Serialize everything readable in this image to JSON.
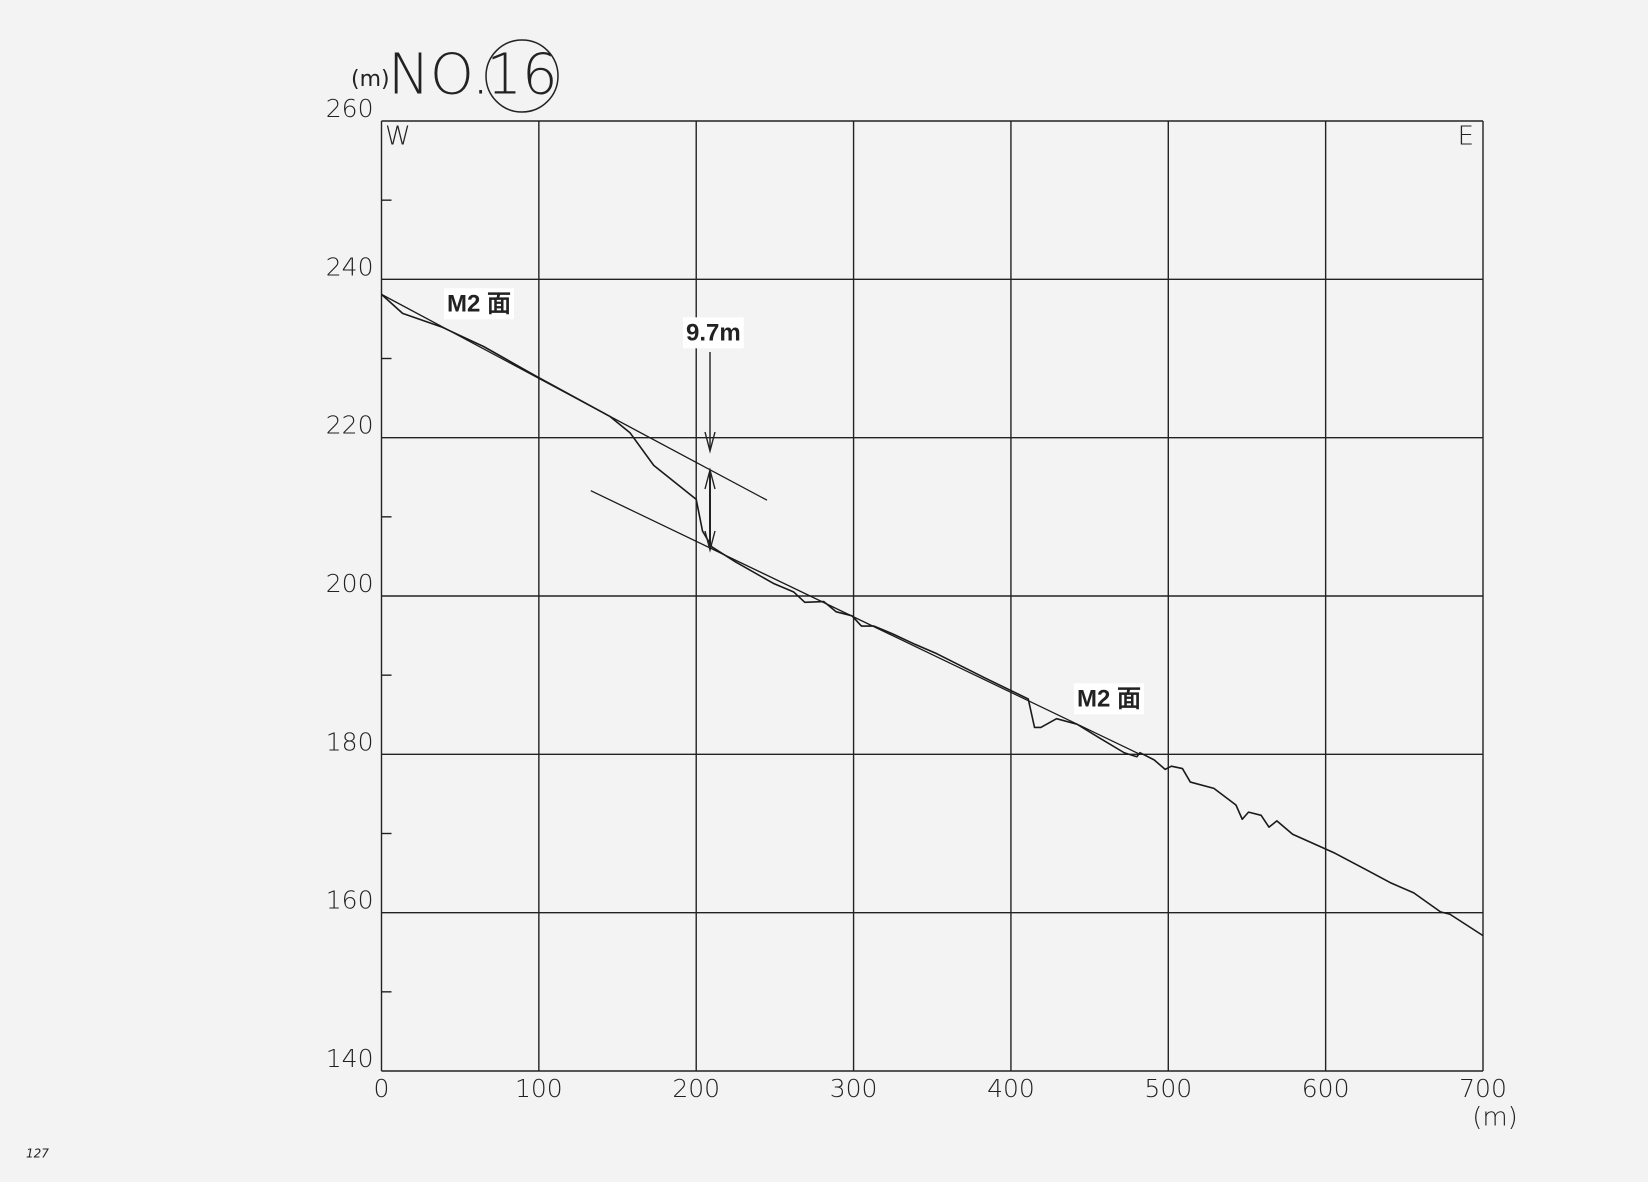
{
  "chart_data": {
    "type": "line",
    "title": "NO.",
    "title_number": "16",
    "ylabel": "(m)",
    "xlabel": "(m)",
    "west_label": "W",
    "east_label": "E",
    "note": "127",
    "annotations": [
      "M2 面",
      "9.7m",
      "M2 面"
    ],
    "x": [
      0,
      13.4,
      38,
      65,
      98,
      145,
      158,
      173,
      200,
      204,
      210,
      225,
      249,
      262,
      269,
      281,
      289,
      299,
      305,
      313,
      325,
      339,
      353,
      383,
      411,
      415,
      419,
      429,
      442,
      456,
      472,
      480,
      482,
      491,
      498,
      502,
      509,
      514,
      529,
      543,
      547,
      551,
      559,
      564,
      569,
      579,
      606,
      626,
      641,
      656,
      673,
      679,
      700
    ],
    "values": [
      238.1,
      235.7,
      234,
      231.5,
      227.8,
      222.7,
      220.6,
      216.5,
      212.2,
      208.2,
      206.2,
      204.3,
      201.6,
      200.5,
      199.2,
      199.3,
      198,
      197.5,
      196.2,
      196.2,
      195.2,
      193.9,
      192.7,
      189.7,
      187,
      183.4,
      183.4,
      184.5,
      183.8,
      182.1,
      180.2,
      179.7,
      180.2,
      179.3,
      178.1,
      178.5,
      178.2,
      176.5,
      175.7,
      173.6,
      171.8,
      172.7,
      172.3,
      170.8,
      171.6,
      169.9,
      167.5,
      165.4,
      163.8,
      162.5,
      160.1,
      159.8,
      157.1
    ],
    "color": "#1a1a1a",
    "fit_lines": [
      {
        "x": [
          0,
          245
        ],
        "values": [
          238.1,
          212.1
        ]
      },
      {
        "x": [
          133,
          482
        ],
        "values": [
          213.3,
          180
        ]
      }
    ],
    "xlim": [
      0,
      700
    ],
    "xticks": [
      0,
      100,
      200,
      300,
      400,
      500,
      600,
      700
    ],
    "ylim": [
      140,
      260
    ],
    "yticks": [
      140,
      160,
      180,
      200,
      220,
      240,
      260
    ],
    "yminor": [
      150,
      170,
      190,
      210,
      230,
      250
    ],
    "grid": true
  }
}
